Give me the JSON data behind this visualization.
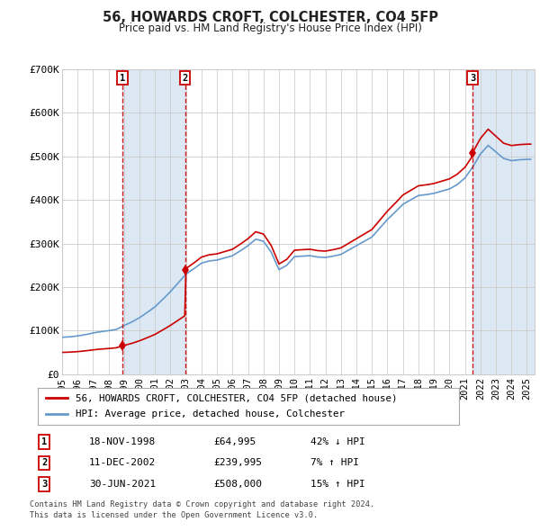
{
  "title": "56, HOWARDS CROFT, COLCHESTER, CO4 5FP",
  "subtitle": "Price paid vs. HM Land Registry's House Price Index (HPI)",
  "legend_label_red": "56, HOWARDS CROFT, COLCHESTER, CO4 5FP (detached house)",
  "legend_label_blue": "HPI: Average price, detached house, Colchester",
  "footer1": "Contains HM Land Registry data © Crown copyright and database right 2024.",
  "footer2": "This data is licensed under the Open Government Licence v3.0.",
  "transactions": [
    {
      "num": 1,
      "date": "18-NOV-1998",
      "price": 64995,
      "pct": "42%",
      "dir": "↓"
    },
    {
      "num": 2,
      "date": "11-DEC-2002",
      "price": 239995,
      "pct": "7%",
      "dir": "↑"
    },
    {
      "num": 3,
      "date": "30-JUN-2021",
      "price": 508000,
      "pct": "15%",
      "dir": "↑"
    }
  ],
  "sale_dates_decimal": [
    1998.88,
    2002.94,
    2021.49
  ],
  "background_color": "#ffffff",
  "plot_bg_color": "#ffffff",
  "grid_color": "#cccccc",
  "shade_color": "#dce9f5",
  "red_color": "#cc0000",
  "blue_color": "#6699cc",
  "ylim": [
    0,
    700000
  ],
  "yticks": [
    0,
    100000,
    200000,
    300000,
    400000,
    500000,
    600000,
    700000
  ],
  "ytick_labels": [
    "£0",
    "£100K",
    "£200K",
    "£300K",
    "£400K",
    "£500K",
    "£600K",
    "£700K"
  ],
  "xlim_start": 1995.0,
  "xlim_end": 2025.5,
  "hpi_anchors": {
    "1995.0": 85000,
    "1995.5": 86000,
    "1996.0": 88000,
    "1996.5": 91000,
    "1997.0": 95000,
    "1997.5": 98000,
    "1998.0": 100000,
    "1998.5": 103000,
    "1999.0": 112000,
    "1999.5": 120000,
    "2000.0": 130000,
    "2000.5": 142000,
    "2001.0": 155000,
    "2001.5": 172000,
    "2002.0": 190000,
    "2002.5": 210000,
    "2003.0": 230000,
    "2003.5": 242000,
    "2004.0": 255000,
    "2004.5": 260000,
    "2005.0": 262000,
    "2005.5": 267000,
    "2006.0": 272000,
    "2006.5": 283000,
    "2007.0": 295000,
    "2007.5": 310000,
    "2008.0": 305000,
    "2008.5": 280000,
    "2009.0": 240000,
    "2009.5": 250000,
    "2010.0": 270000,
    "2010.5": 271000,
    "2011.0": 272000,
    "2011.5": 269000,
    "2012.0": 268000,
    "2012.5": 271000,
    "2013.0": 275000,
    "2013.5": 285000,
    "2014.0": 295000,
    "2014.5": 305000,
    "2015.0": 315000,
    "2015.5": 335000,
    "2016.0": 355000,
    "2016.5": 372000,
    "2017.0": 390000,
    "2017.5": 400000,
    "2018.0": 410000,
    "2018.5": 412000,
    "2019.0": 415000,
    "2019.5": 420000,
    "2020.0": 425000,
    "2020.5": 435000,
    "2021.0": 450000,
    "2021.5": 475000,
    "2022.0": 505000,
    "2022.5": 525000,
    "2023.0": 510000,
    "2023.5": 495000,
    "2024.0": 490000,
    "2024.5": 492000,
    "2025.0": 493000,
    "2025.5": 493000
  }
}
